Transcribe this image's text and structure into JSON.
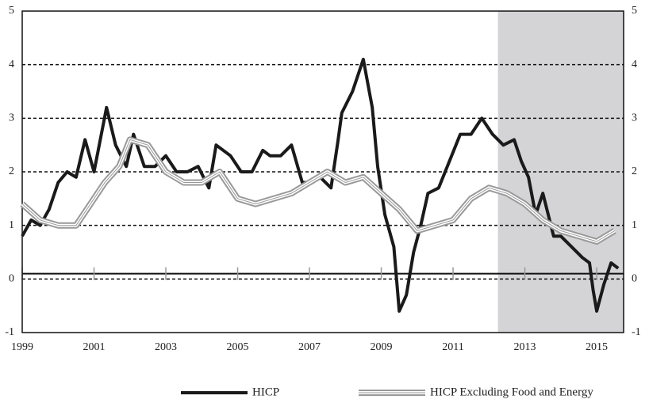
{
  "chart_data": {
    "type": "line",
    "xlim": [
      1999,
      2015.75
    ],
    "xticks": [
      1999,
      2001,
      2003,
      2005,
      2007,
      2009,
      2011,
      2013,
      2015
    ],
    "ylim": [
      -1,
      5
    ],
    "yticks": [
      -1,
      0,
      1,
      2,
      3,
      4,
      5
    ],
    "y2lim": [
      -1,
      5
    ],
    "y2ticks": [
      -1,
      0,
      1,
      2,
      3,
      4,
      5
    ],
    "grid": true,
    "shaded_region": [
      2012.25,
      2015.75
    ],
    "hline": 0.1,
    "legend": "bottom",
    "series": [
      {
        "name": "HICP",
        "color": "#1a1a1a",
        "style": "solid",
        "x": [
          1999.0,
          1999.25,
          1999.5,
          1999.75,
          2000.0,
          2000.25,
          2000.5,
          2000.75,
          2001.0,
          2001.35,
          2001.6,
          2001.9,
          2002.1,
          2002.4,
          2002.7,
          2003.0,
          2003.3,
          2003.6,
          2003.9,
          2004.2,
          2004.4,
          2004.8,
          2005.1,
          2005.4,
          2005.7,
          2005.9,
          2006.2,
          2006.5,
          2006.8,
          2007.0,
          2007.3,
          2007.6,
          2007.8,
          2007.9,
          2008.2,
          2008.5,
          2008.75,
          2008.9,
          2009.1,
          2009.35,
          2009.5,
          2009.7,
          2009.9,
          2010.1,
          2010.3,
          2010.6,
          2010.9,
          2011.2,
          2011.5,
          2011.8,
          2012.1,
          2012.4,
          2012.7,
          2012.9,
          2013.1,
          2013.3,
          2013.5,
          2013.8,
          2014.0,
          2014.3,
          2014.6,
          2014.8,
          2014.9,
          2015.0,
          2015.2,
          2015.4,
          2015.6
        ],
        "values": [
          0.8,
          1.1,
          1.0,
          1.3,
          1.8,
          2.0,
          1.9,
          2.6,
          2.0,
          3.2,
          2.5,
          2.1,
          2.7,
          2.1,
          2.1,
          2.3,
          2.0,
          2.0,
          2.1,
          1.7,
          2.5,
          2.3,
          2.0,
          2.0,
          2.4,
          2.3,
          2.3,
          2.5,
          1.8,
          1.8,
          1.9,
          1.7,
          2.6,
          3.1,
          3.5,
          4.1,
          3.2,
          2.1,
          1.2,
          0.6,
          -0.6,
          -0.3,
          0.5,
          1.0,
          1.6,
          1.7,
          2.2,
          2.7,
          2.7,
          3.0,
          2.7,
          2.5,
          2.6,
          2.2,
          1.9,
          1.2,
          1.6,
          0.8,
          0.8,
          0.6,
          0.4,
          0.3,
          -0.2,
          -0.6,
          -0.1,
          0.3,
          0.2
        ]
      },
      {
        "name": "HICP Excluding Food and Energy",
        "color": "#999999",
        "style": "double",
        "x": [
          1999.0,
          1999.5,
          2000.0,
          2000.5,
          2000.9,
          2001.3,
          2001.7,
          2002.0,
          2002.5,
          2003.0,
          2003.5,
          2004.0,
          2004.5,
          2005.0,
          2005.5,
          2006.0,
          2006.5,
          2007.0,
          2007.5,
          2008.0,
          2008.5,
          2009.0,
          2009.5,
          2010.0,
          2010.5,
          2011.0,
          2011.5,
          2012.0,
          2012.5,
          2013.0,
          2013.5,
          2014.0,
          2014.5,
          2015.0,
          2015.5
        ],
        "values": [
          1.4,
          1.1,
          1.0,
          1.0,
          1.4,
          1.8,
          2.1,
          2.6,
          2.5,
          2.0,
          1.8,
          1.8,
          2.0,
          1.5,
          1.4,
          1.5,
          1.6,
          1.8,
          2.0,
          1.8,
          1.9,
          1.6,
          1.3,
          0.9,
          1.0,
          1.1,
          1.5,
          1.7,
          1.6,
          1.4,
          1.1,
          0.9,
          0.8,
          0.7,
          0.9
        ]
      }
    ]
  }
}
